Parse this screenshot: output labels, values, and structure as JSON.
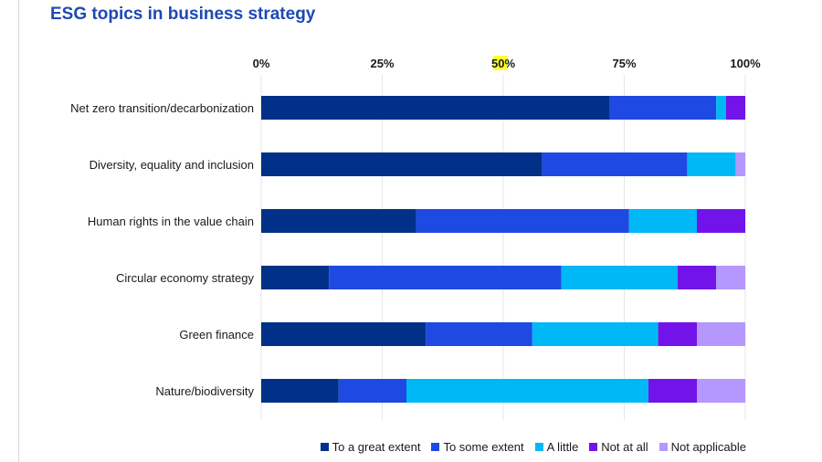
{
  "chart_data": {
    "type": "bar",
    "orientation": "horizontal",
    "stacked": true,
    "title": "ESG topics in business strategy",
    "xlabel": "",
    "ylabel": "",
    "xlim": [
      0,
      100
    ],
    "ticks": [
      0,
      25,
      50,
      75,
      100
    ],
    "tick_labels": [
      "0%",
      "25%",
      "50%",
      "75%",
      "100%"
    ],
    "highlighted_tick_text": "50",
    "grid": true,
    "legend_position": "bottom",
    "categories": [
      "Net zero transition/decarbonization",
      "Diversity, equality and inclusion",
      "Human rights in the value chain",
      "Circular economy strategy",
      "Green finance",
      "Nature/biodiversity"
    ],
    "series": [
      {
        "name": "To a great extent",
        "color": "#003087",
        "values": [
          72,
          58,
          32,
          14,
          34,
          16
        ]
      },
      {
        "name": "To some extent",
        "color": "#1e49e2",
        "values": [
          22,
          30,
          44,
          48,
          22,
          14
        ]
      },
      {
        "name": "A little",
        "color": "#00b8f5",
        "values": [
          2,
          10,
          14,
          24,
          26,
          50
        ]
      },
      {
        "name": "Not at all",
        "color": "#7213ea",
        "values": [
          4,
          0,
          10,
          8,
          8,
          10
        ]
      },
      {
        "name": "Not applicable",
        "color": "#b497ff",
        "values": [
          0,
          2,
          0,
          6,
          10,
          10
        ]
      }
    ]
  }
}
